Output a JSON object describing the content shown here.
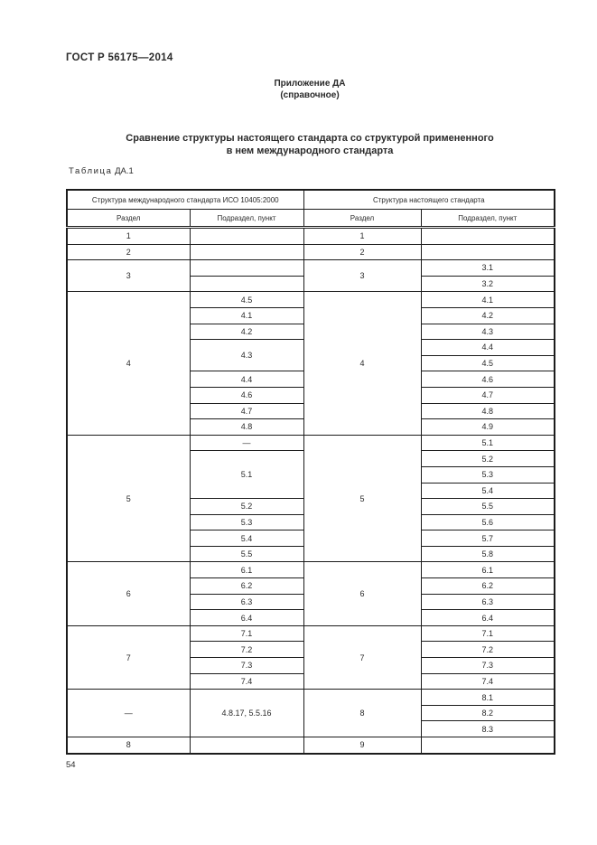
{
  "page": {
    "header": "ГОСТ Р 56175—2014",
    "annex_label": "Приложение ДА",
    "annex_note": "(справочное)",
    "title_line1": "Сравнение структуры настоящего стандарта со структурой примененного",
    "title_line2": "в нем международного стандарта",
    "table_label_word": "Таблица",
    "table_label_number": "ДА.1",
    "page_number": "54"
  },
  "table": {
    "group_headers": [
      "Структура международного стандарта ИСО 10405:2000",
      "Структура настоящего стандарта"
    ],
    "col_headers": [
      "Раздел",
      "Подраздел, пункт",
      "Раздел",
      "Подраздел, пункт"
    ],
    "rows": [
      [
        {
          "t": "1"
        },
        {
          "t": ""
        },
        {
          "t": "1"
        },
        {
          "t": ""
        }
      ],
      [
        {
          "t": "2"
        },
        {
          "t": ""
        },
        {
          "t": "2"
        },
        {
          "t": ""
        }
      ],
      [
        {
          "t": "3",
          "rs": 2
        },
        {
          "t": ""
        },
        {
          "t": "3",
          "rs": 2
        },
        {
          "t": "3.1"
        }
      ],
      [
        {
          "t": ""
        },
        {
          "t": "3.2"
        }
      ],
      [
        {
          "t": "4",
          "rs": 9
        },
        {
          "t": "4.5"
        },
        {
          "t": "4",
          "rs": 9
        },
        {
          "t": "4.1"
        }
      ],
      [
        {
          "t": "4.1"
        },
        {
          "t": "4.2"
        }
      ],
      [
        {
          "t": "4.2"
        },
        {
          "t": "4.3"
        }
      ],
      [
        {
          "t": "4.3",
          "rs": 2
        },
        {
          "t": "4.4"
        }
      ],
      [
        {
          "t": "4.5"
        }
      ],
      [
        {
          "t": "4.4"
        },
        {
          "t": "4.6"
        }
      ],
      [
        {
          "t": "4.6"
        },
        {
          "t": "4.7"
        }
      ],
      [
        {
          "t": "4.7"
        },
        {
          "t": "4.8"
        }
      ],
      [
        {
          "t": "4.8"
        },
        {
          "t": "4.9"
        }
      ],
      [
        {
          "t": "5",
          "rs": 8
        },
        {
          "t": "—"
        },
        {
          "t": "5",
          "rs": 8
        },
        {
          "t": "5.1"
        }
      ],
      [
        {
          "t": "5.1",
          "rs": 3
        },
        {
          "t": "5.2"
        }
      ],
      [
        {
          "t": "5.3"
        }
      ],
      [
        {
          "t": "5.4"
        }
      ],
      [
        {
          "t": "5.2"
        },
        {
          "t": "5.5"
        }
      ],
      [
        {
          "t": "5.3"
        },
        {
          "t": "5.6"
        }
      ],
      [
        {
          "t": "5.4"
        },
        {
          "t": "5.7"
        }
      ],
      [
        {
          "t": "5.5"
        },
        {
          "t": "5.8"
        }
      ],
      [
        {
          "t": "6",
          "rs": 4
        },
        {
          "t": "6.1"
        },
        {
          "t": "6",
          "rs": 4
        },
        {
          "t": "6.1"
        }
      ],
      [
        {
          "t": "6.2"
        },
        {
          "t": "6.2"
        }
      ],
      [
        {
          "t": "6.3"
        },
        {
          "t": "6.3"
        }
      ],
      [
        {
          "t": "6.4"
        },
        {
          "t": "6.4"
        }
      ],
      [
        {
          "t": "7",
          "rs": 4
        },
        {
          "t": "7.1"
        },
        {
          "t": "7",
          "rs": 4
        },
        {
          "t": "7.1"
        }
      ],
      [
        {
          "t": "7.2"
        },
        {
          "t": "7.2"
        }
      ],
      [
        {
          "t": "7.3"
        },
        {
          "t": "7.3"
        }
      ],
      [
        {
          "t": "7.4"
        },
        {
          "t": "7.4"
        }
      ],
      [
        {
          "t": "—",
          "rs": 3
        },
        {
          "t": "4.8.17, 5.5.16",
          "rs": 3
        },
        {
          "t": "8",
          "rs": 3
        },
        {
          "t": "8.1"
        }
      ],
      [
        {
          "t": "8.2"
        }
      ],
      [
        {
          "t": "8.3"
        }
      ],
      [
        {
          "t": "8"
        },
        {
          "t": ""
        },
        {
          "t": "9"
        },
        {
          "t": ""
        }
      ]
    ]
  }
}
